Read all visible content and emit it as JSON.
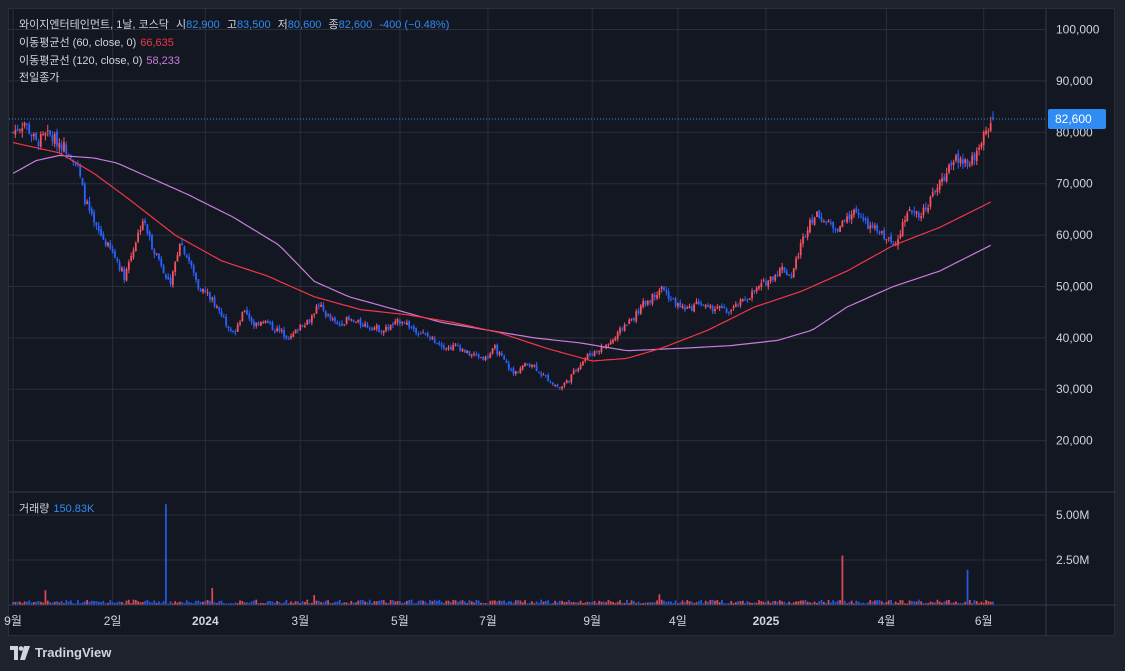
{
  "legend": {
    "symbol": "와이지엔터테인먼트, 1날, 코스닥",
    "open_label": "시",
    "open": "82,900",
    "high_label": "고",
    "high": "83,500",
    "low_label": "저",
    "low": "80,600",
    "close_label": "종",
    "close": "82,600",
    "change": "-400 (−0.48%)",
    "ma60_label": "이동평균선 (60, close, 0)",
    "ma60_value": "66,635",
    "ma120_label": "이동평균선 (120, close, 0)",
    "ma120_value": "58,233",
    "prev_close_label": "전일종가",
    "volume_label": "거래량",
    "volume_value": "150.83K"
  },
  "price_tag": "82,600",
  "footer": {
    "brand": "TradingView"
  },
  "colors": {
    "up": "#f7525f",
    "down": "#2962ff",
    "ma60": "#f23645",
    "ma120": "#c77ddc",
    "accent": "#2f8cf5",
    "background": "#131722",
    "grid": "#2a2e39"
  },
  "chart_data": {
    "type": "candlestick",
    "price_axis": {
      "ticks": [
        "100,000",
        "90,000",
        "80,000",
        "70,000",
        "60,000",
        "50,000",
        "40,000",
        "30,000",
        "20,000"
      ],
      "ylim": [
        10000,
        104000
      ]
    },
    "volume_axis": {
      "ticks": [
        "5.00M",
        "2.50M"
      ],
      "ylim": [
        0,
        6000000
      ]
    },
    "x_ticks": [
      "9월",
      "2일",
      "2024",
      "3월",
      "5월",
      "7월",
      "9월",
      "4일",
      "2025",
      "4월",
      "6월"
    ],
    "price_anchors": [
      [
        0,
        80000
      ],
      [
        5,
        82000
      ],
      [
        10,
        78000
      ],
      [
        15,
        79500
      ],
      [
        20,
        78000
      ],
      [
        25,
        76000
      ],
      [
        28,
        73000
      ],
      [
        31,
        67000
      ],
      [
        35,
        62000
      ],
      [
        40,
        58500
      ],
      [
        45,
        55000
      ],
      [
        48,
        52000
      ],
      [
        52,
        57500
      ],
      [
        56,
        63000
      ],
      [
        60,
        58000
      ],
      [
        64,
        54500
      ],
      [
        68,
        50000
      ],
      [
        72,
        59000
      ],
      [
        76,
        55000
      ],
      [
        80,
        50000
      ],
      [
        84,
        48500
      ],
      [
        88,
        46000
      ],
      [
        92,
        43000
      ],
      [
        96,
        41000
      ],
      [
        100,
        45500
      ],
      [
        104,
        42500
      ],
      [
        108,
        43500
      ],
      [
        112,
        42000
      ],
      [
        116,
        41000
      ],
      [
        120,
        40000
      ],
      [
        124,
        42500
      ],
      [
        128,
        43500
      ],
      [
        132,
        46500
      ],
      [
        136,
        44000
      ],
      [
        140,
        42500
      ],
      [
        144,
        43500
      ],
      [
        148,
        43000
      ],
      [
        152,
        42500
      ],
      [
        156,
        42000
      ],
      [
        160,
        41500
      ],
      [
        164,
        42500
      ],
      [
        168,
        43500
      ],
      [
        172,
        42000
      ],
      [
        176,
        41000
      ],
      [
        180,
        40000
      ],
      [
        184,
        39000
      ],
      [
        188,
        38000
      ],
      [
        192,
        38500
      ],
      [
        196,
        37000
      ],
      [
        200,
        36500
      ],
      [
        204,
        36000
      ],
      [
        208,
        38000
      ],
      [
        212,
        35500
      ],
      [
        216,
        33000
      ],
      [
        220,
        34500
      ],
      [
        224,
        35000
      ],
      [
        228,
        33000
      ],
      [
        232,
        31500
      ],
      [
        236,
        30200
      ],
      [
        240,
        32000
      ],
      [
        244,
        34500
      ],
      [
        248,
        36500
      ],
      [
        252,
        37500
      ],
      [
        256,
        38500
      ],
      [
        260,
        40000
      ],
      [
        264,
        42500
      ],
      [
        268,
        44000
      ],
      [
        272,
        46500
      ],
      [
        276,
        48000
      ],
      [
        280,
        50000
      ],
      [
        284,
        47500
      ],
      [
        288,
        46000
      ],
      [
        292,
        45500
      ],
      [
        296,
        47000
      ],
      [
        300,
        45500
      ],
      [
        304,
        46000
      ],
      [
        308,
        45000
      ],
      [
        312,
        46000
      ],
      [
        316,
        47500
      ],
      [
        320,
        49000
      ],
      [
        324,
        50500
      ],
      [
        328,
        52000
      ],
      [
        332,
        53500
      ],
      [
        336,
        52000
      ],
      [
        340,
        58000
      ],
      [
        344,
        63000
      ],
      [
        348,
        64000
      ],
      [
        352,
        62000
      ],
      [
        356,
        61500
      ],
      [
        360,
        63000
      ],
      [
        364,
        65000
      ],
      [
        368,
        62000
      ],
      [
        372,
        61000
      ],
      [
        376,
        60000
      ],
      [
        380,
        58000
      ],
      [
        384,
        62000
      ],
      [
        388,
        65000
      ],
      [
        392,
        64000
      ],
      [
        396,
        67000
      ],
      [
        400,
        70000
      ],
      [
        404,
        73000
      ],
      [
        408,
        75000
      ],
      [
        412,
        74000
      ],
      [
        416,
        76000
      ],
      [
        420,
        80500
      ],
      [
        423,
        82600
      ]
    ],
    "ma60_anchors": [
      [
        0,
        78000
      ],
      [
        20,
        76000
      ],
      [
        35,
        72000
      ],
      [
        50,
        67000
      ],
      [
        70,
        60000
      ],
      [
        90,
        55000
      ],
      [
        110,
        52000
      ],
      [
        130,
        48000
      ],
      [
        150,
        45500
      ],
      [
        170,
        44500
      ],
      [
        190,
        43000
      ],
      [
        210,
        41000
      ],
      [
        230,
        38000
      ],
      [
        250,
        35500
      ],
      [
        265,
        36000
      ],
      [
        280,
        38000
      ],
      [
        300,
        41500
      ],
      [
        320,
        46000
      ],
      [
        340,
        49000
      ],
      [
        360,
        53000
      ],
      [
        380,
        58000
      ],
      [
        400,
        61500
      ],
      [
        423,
        66635
      ]
    ],
    "ma120_anchors": [
      [
        0,
        72000
      ],
      [
        10,
        74500
      ],
      [
        20,
        75500
      ],
      [
        35,
        75000
      ],
      [
        45,
        74000
      ],
      [
        55,
        72000
      ],
      [
        75,
        68000
      ],
      [
        95,
        63500
      ],
      [
        115,
        58000
      ],
      [
        130,
        51000
      ],
      [
        145,
        48000
      ],
      [
        165,
        45500
      ],
      [
        185,
        43000
      ],
      [
        205,
        41500
      ],
      [
        225,
        40000
      ],
      [
        245,
        39000
      ],
      [
        265,
        37500
      ],
      [
        290,
        38000
      ],
      [
        310,
        38500
      ],
      [
        330,
        39500
      ],
      [
        345,
        41500
      ],
      [
        360,
        46000
      ],
      [
        380,
        50000
      ],
      [
        400,
        53000
      ],
      [
        423,
        58233
      ]
    ],
    "volume_spikes": [
      [
        14,
        0.82
      ],
      [
        66,
        5.6
      ],
      [
        86,
        0.95
      ],
      [
        130,
        0.55
      ],
      [
        279,
        0.6
      ],
      [
        358,
        2.75
      ],
      [
        412,
        1.95
      ]
    ]
  }
}
